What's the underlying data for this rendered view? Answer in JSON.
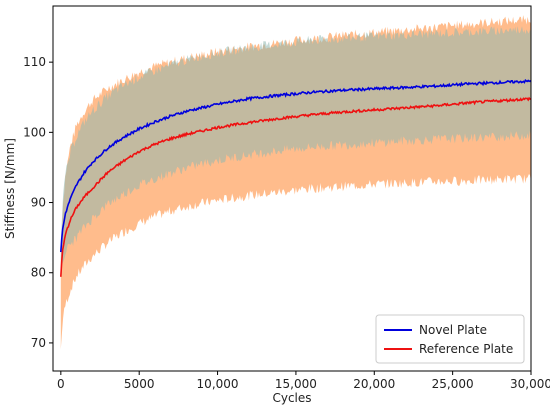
{
  "chart_data": {
    "type": "line",
    "title": "",
    "xlabel": "Cycles",
    "ylabel": "Stiffness [N/mm]",
    "xlim": [
      -500,
      30000
    ],
    "ylim": [
      66,
      118
    ],
    "xticks": [
      0,
      5000,
      10000,
      15000,
      20000,
      25000,
      30000
    ],
    "xtick_labels": [
      "0",
      "5000",
      "10,000",
      "15,000",
      "20,000",
      "25,000",
      "30,000"
    ],
    "yticks": [
      70,
      80,
      90,
      100,
      110
    ],
    "ytick_labels": [
      "70",
      "80",
      "90",
      "100",
      "110"
    ],
    "grid": false,
    "legend_position": "bottom-right",
    "series": [
      {
        "name": "Novel Plate",
        "color": "#0000dd",
        "band_color": "#8fb8b0",
        "x": [
          0,
          100,
          300,
          600,
          1000,
          1500,
          2000,
          3000,
          4000,
          5000,
          6000,
          7000,
          8000,
          9000,
          10000,
          12000,
          14000,
          16000,
          18000,
          20000,
          22000,
          24000,
          26000,
          28000,
          30000
        ],
        "mean": [
          83,
          86,
          88.5,
          90.5,
          92.5,
          94.3,
          95.7,
          97.8,
          99.3,
          100.5,
          101.5,
          102.3,
          103,
          103.5,
          104,
          104.8,
          105.3,
          105.7,
          106,
          106.2,
          106.4,
          106.6,
          106.9,
          107.1,
          107.3
        ],
        "upper": [
          85,
          90,
          94,
          97,
          99.5,
          101.5,
          103,
          105.2,
          106.7,
          107.9,
          108.8,
          109.6,
          110.3,
          110.9,
          111.3,
          112.1,
          112.6,
          113.1,
          113.4,
          113.7,
          113.9,
          114.1,
          114.3,
          114.5,
          114.7
        ],
        "lower": [
          80,
          82,
          83,
          84,
          85,
          86.5,
          87.7,
          89.8,
          91.2,
          92.5,
          93.4,
          94.2,
          94.9,
          95.5,
          96,
          96.8,
          97.4,
          97.9,
          98.2,
          98.5,
          98.8,
          99,
          99.2,
          99.4,
          99.6
        ]
      },
      {
        "name": "Reference Plate",
        "color": "#ee1111",
        "band_color": "#ffa666",
        "x": [
          0,
          100,
          300,
          600,
          1000,
          1500,
          2000,
          3000,
          4000,
          5000,
          6000,
          7000,
          8000,
          9000,
          10000,
          12000,
          14000,
          16000,
          18000,
          20000,
          22000,
          24000,
          26000,
          28000,
          30000
        ],
        "mean": [
          79.5,
          83,
          85.5,
          87.5,
          89.3,
          90.8,
          92,
          94.3,
          95.9,
          97.3,
          98.3,
          99.1,
          99.7,
          100.2,
          100.7,
          101.4,
          102,
          102.5,
          102.9,
          103.2,
          103.5,
          103.8,
          104.2,
          104.5,
          104.8
        ],
        "upper": [
          82,
          89,
          94,
          98,
          101,
          103,
          104.5,
          106.3,
          107.5,
          108.6,
          109.4,
          110,
          110.6,
          111,
          111.5,
          112.2,
          112.8,
          113.3,
          113.8,
          114.2,
          114.6,
          115,
          115.4,
          115.8,
          116.1
        ],
        "lower": [
          69,
          73,
          75.5,
          77.5,
          79.5,
          81,
          82.3,
          84.3,
          85.8,
          87,
          88,
          88.8,
          89.4,
          89.9,
          90.3,
          91,
          91.5,
          92,
          92.3,
          92.6,
          92.8,
          93,
          93.1,
          93.3,
          93.4
        ]
      }
    ]
  }
}
